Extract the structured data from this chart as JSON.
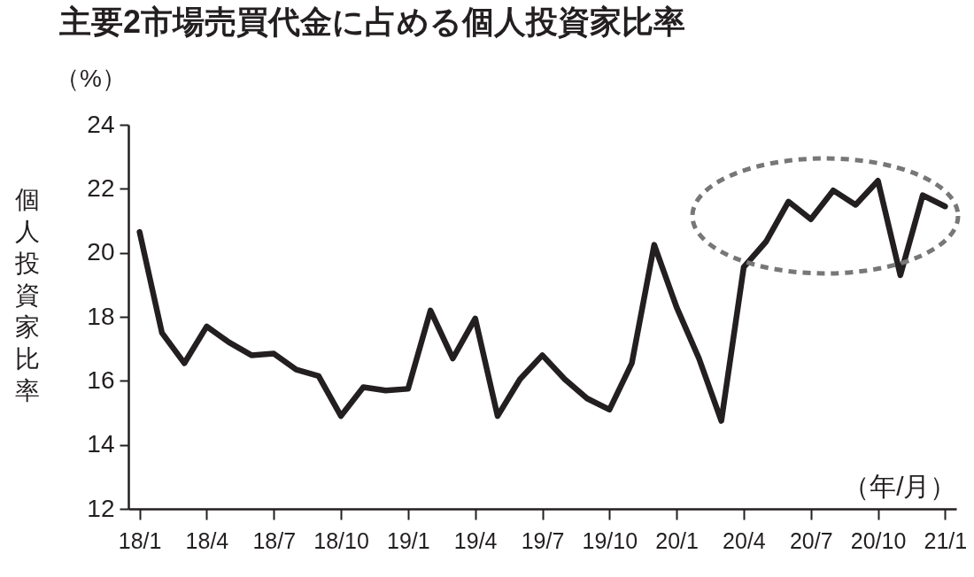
{
  "chart_data": {
    "type": "line",
    "title": "主要2市場売買代金に占める個人投資家比率",
    "ylabel": "個人投資家比率",
    "xlabel": "（年/月）",
    "annotations": [
      "（%）"
    ],
    "categories": [
      "18/1",
      null,
      null,
      "18/4",
      null,
      null,
      "18/7",
      null,
      null,
      "18/10",
      null,
      null,
      "19/1",
      null,
      null,
      "19/4",
      null,
      null,
      "19/7",
      null,
      null,
      "19/10",
      null,
      null,
      "20/1",
      null,
      null,
      "20/4",
      null,
      null,
      "20/7",
      null,
      null,
      "20/10",
      null,
      null,
      "21/1"
    ],
    "series": [
      {
        "color": "#231f20",
        "values": [
          20.65,
          17.5,
          16.55,
          17.7,
          17.2,
          16.8,
          16.85,
          16.35,
          16.15,
          14.9,
          15.8,
          15.7,
          15.75,
          18.2,
          16.7,
          17.95,
          14.9,
          16.05,
          16.8,
          16.05,
          15.45,
          15.1,
          16.55,
          20.25,
          18.3,
          16.7,
          14.75,
          19.55,
          20.35,
          21.6,
          21.05,
          21.95,
          21.5,
          22.25,
          19.3,
          21.8,
          21.45
        ]
      }
    ],
    "ylim": [
      12,
      24
    ],
    "yticks": [
      12,
      14,
      16,
      18,
      20,
      22,
      24
    ]
  }
}
